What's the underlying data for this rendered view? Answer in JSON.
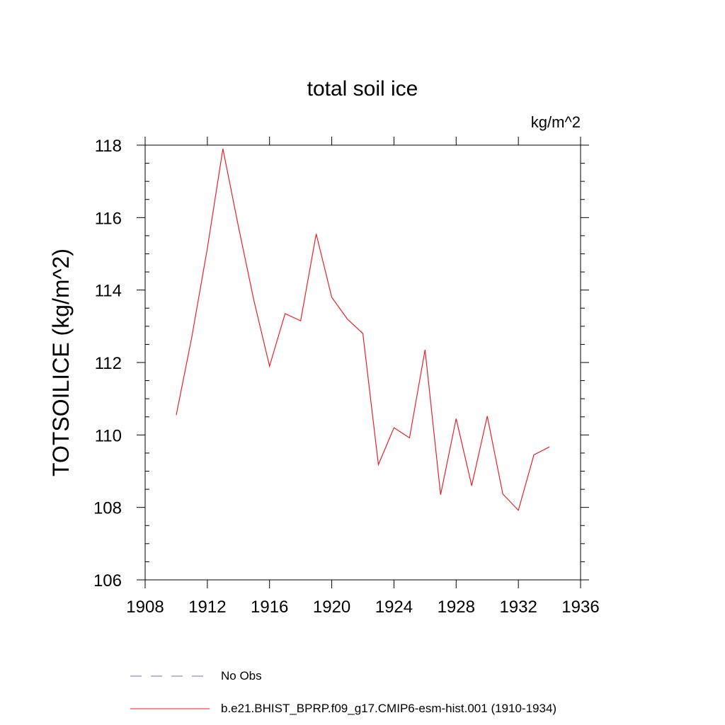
{
  "chart_data": {
    "type": "line",
    "title": "total soil ice",
    "units_label": "kg/m^2",
    "ylabel": "TOTSOILICE  (kg/m^2)",
    "xlabel": "",
    "xlim": [
      1908,
      1936
    ],
    "ylim": [
      106,
      118
    ],
    "x_ticks": [
      1908,
      1912,
      1916,
      1920,
      1924,
      1928,
      1932,
      1936
    ],
    "y_ticks": [
      106,
      108,
      110,
      112,
      114,
      116,
      118
    ],
    "x_tick_labels": [
      "1908",
      "1912",
      "1916",
      "1920",
      "1924",
      "1928",
      "1932",
      "1936"
    ],
    "y_tick_labels": [
      "106",
      "108",
      "110",
      "112",
      "114",
      "116",
      "118"
    ],
    "grid": false,
    "legend_position": "bottom",
    "series": [
      {
        "name": "b.e21.BHIST_BPRP.f09_g17.CMIP6-esm-hist.001 (1910-1934)",
        "color": "#e8202a",
        "style": "solid",
        "x": [
          1910,
          1911,
          1912,
          1913,
          1914,
          1915,
          1916,
          1917,
          1918,
          1919,
          1920,
          1921,
          1922,
          1923,
          1924,
          1925,
          1926,
          1927,
          1928,
          1929,
          1930,
          1931,
          1932,
          1933,
          1934
        ],
        "y": [
          110.55,
          112.7,
          115.15,
          117.9,
          115.75,
          113.7,
          111.9,
          113.35,
          113.15,
          115.55,
          113.8,
          113.2,
          112.8,
          109.18,
          110.2,
          109.92,
          112.35,
          108.35,
          110.45,
          108.6,
          110.52,
          108.37,
          107.92,
          109.45,
          109.67
        ]
      }
    ],
    "legend": [
      {
        "label": "No Obs",
        "color": "#7b6fb0",
        "style": "dashed"
      },
      {
        "label": "b.e21.BHIST_BPRP.f09_g17.CMIP6-esm-hist.001 (1910-1934)",
        "color": "#e8202a",
        "style": "solid"
      }
    ]
  }
}
